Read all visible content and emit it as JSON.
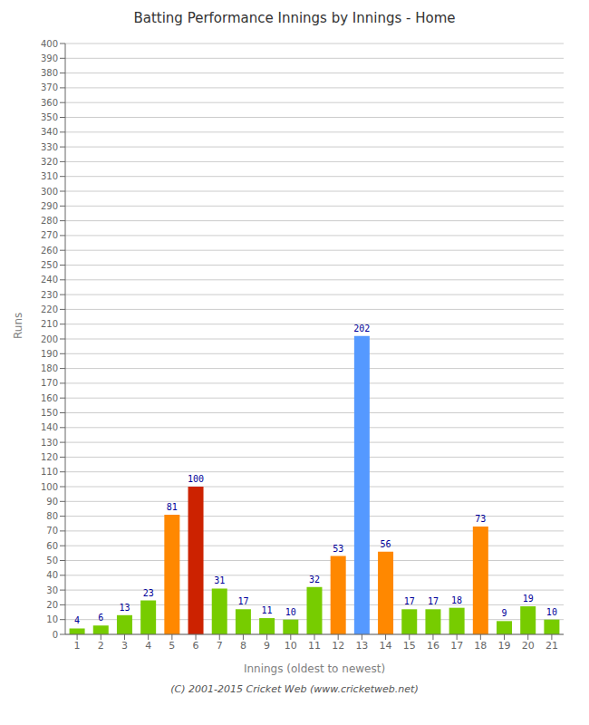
{
  "chart_data": {
    "type": "bar",
    "title": "Batting Performance Innings by Innings - Home",
    "xlabel": "Innings (oldest to newest)",
    "ylabel": "Runs",
    "categories": [
      "1",
      "2",
      "3",
      "4",
      "5",
      "6",
      "7",
      "8",
      "9",
      "10",
      "11",
      "12",
      "13",
      "14",
      "15",
      "16",
      "17",
      "18",
      "19",
      "20",
      "21"
    ],
    "values": [
      4,
      6,
      13,
      23,
      81,
      100,
      31,
      17,
      11,
      10,
      32,
      53,
      202,
      56,
      17,
      17,
      18,
      73,
      9,
      19,
      10
    ],
    "colors": [
      "#77cc00",
      "#77cc00",
      "#77cc00",
      "#77cc00",
      "#ff8800",
      "#cc2200",
      "#77cc00",
      "#77cc00",
      "#77cc00",
      "#77cc00",
      "#77cc00",
      "#ff8800",
      "#5599ff",
      "#ff8800",
      "#77cc00",
      "#77cc00",
      "#77cc00",
      "#ff8800",
      "#77cc00",
      "#77cc00",
      "#77cc00"
    ],
    "ylim": [
      0,
      400
    ],
    "yticks": [
      0,
      10,
      20,
      30,
      40,
      50,
      60,
      70,
      80,
      90,
      100,
      110,
      120,
      130,
      140,
      150,
      160,
      170,
      180,
      190,
      200,
      210,
      220,
      230,
      240,
      250,
      260,
      270,
      280,
      290,
      300,
      310,
      320,
      330,
      340,
      350,
      360,
      370,
      380,
      390,
      400
    ],
    "grid": true,
    "data_labels": true,
    "annotations": [
      "(C) 2001-2015 Cricket Web (www.cricketweb.net)"
    ]
  }
}
